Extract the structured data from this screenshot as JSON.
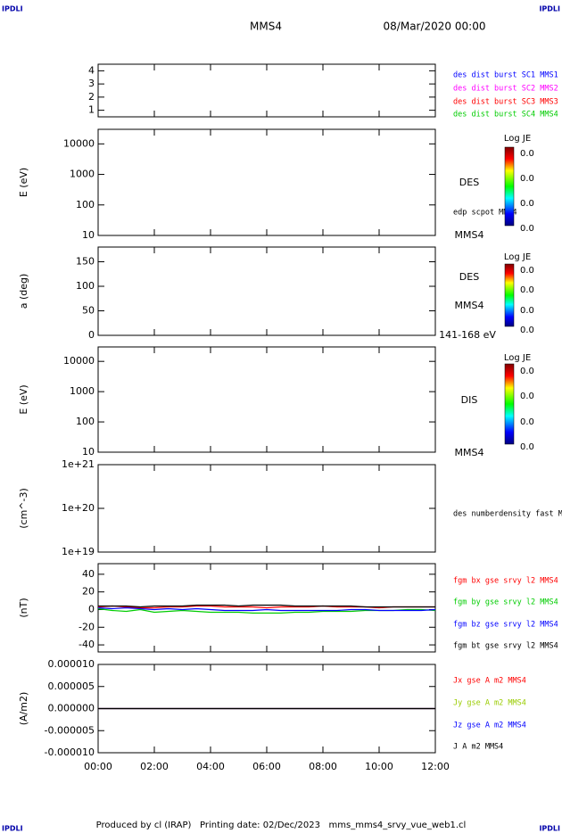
{
  "header": {
    "left_logo": "IPDLI",
    "right_logo": "IPDLI",
    "spacecraft": "MMS4",
    "date": "08/Mar/2020 00:00"
  },
  "footer": {
    "left_logo": "IPDLI",
    "text": "Produced by cl (IRAP)   Printing date: 02/Dec/2023   mms_mms4_srvy_vue_web1.cl",
    "right_logo": "IPDLI"
  },
  "chart_data": [
    {
      "type": "line",
      "ylim": [
        0.5,
        4.5
      ],
      "yticks": [
        1,
        2,
        3,
        4
      ],
      "series": [
        {
          "name": "des dist burst SC1 MMS1",
          "color": "#0000ff"
        },
        {
          "name": "des dist burst SC2 MMS2",
          "color": "#ff00ff"
        },
        {
          "name": "des dist burst SC3 MMS3",
          "color": "#ff0000"
        },
        {
          "name": "des dist burst SC4 MMS4",
          "color": "#00cc00"
        }
      ]
    },
    {
      "type": "spectrogram",
      "y_label": "E (eV)",
      "log_scale": true,
      "ylim": [
        10,
        30000
      ],
      "yticks": [
        10,
        100,
        1000,
        10000
      ],
      "annotations": [
        "DES",
        "edp scpot MMS4",
        "MMS4"
      ],
      "colorbar": {
        "label": "Log JE",
        "tick_labels": [
          "0.0",
          "0.0",
          "0.0",
          "0.0"
        ]
      }
    },
    {
      "type": "spectrogram",
      "y_label": "a (deg)",
      "ylim": [
        0,
        180
      ],
      "yticks": [
        0,
        50,
        100,
        150
      ],
      "annotations": [
        "DES",
        "MMS4",
        "141-168 eV"
      ],
      "colorbar": {
        "label": "Log JE",
        "tick_labels": [
          "0.0",
          "0.0",
          "0.0",
          "0.0"
        ]
      }
    },
    {
      "type": "spectrogram",
      "y_label": "E (eV)",
      "log_scale": true,
      "ylim": [
        10,
        30000
      ],
      "yticks": [
        10,
        100,
        1000,
        10000
      ],
      "annotations": [
        "DIS",
        "MMS4"
      ],
      "colorbar": {
        "label": "Log JE",
        "tick_labels": [
          "0.0",
          "0.0",
          "0.0",
          "0.0"
        ]
      }
    },
    {
      "type": "line",
      "y_label": "(cm^-3)",
      "log_scale": true,
      "ylim": [
        1e+19,
        1e+21
      ],
      "yticks": [
        {
          "value": 1e+19,
          "label": "1e+19"
        },
        {
          "value": 1e+20,
          "label": "1e+20"
        },
        {
          "value": 1e+21,
          "label": "1e+21"
        }
      ],
      "series": [
        {
          "name": "des numberdensity fast M",
          "color": "#000000"
        }
      ]
    },
    {
      "type": "line",
      "y_label": "(nT)",
      "ylim": [
        -48,
        52
      ],
      "yticks": [
        -40,
        -20,
        0,
        20,
        40
      ],
      "x": [
        0,
        0.5,
        1,
        1.5,
        2,
        2.5,
        3,
        3.5,
        4,
        4.5,
        5,
        5.5,
        6,
        6.5,
        7,
        7.5,
        8,
        8.5,
        9,
        9.5,
        10,
        10.5,
        11,
        11.5,
        12
      ],
      "series": [
        {
          "name": "fgm bx gse srvy l2 MMS4",
          "color": "#ff0000",
          "values": [
            3,
            4,
            3,
            2,
            2,
            3,
            3,
            4,
            4,
            3,
            3,
            3,
            2,
            3,
            3,
            3,
            4,
            3,
            3,
            3,
            2,
            3,
            3,
            3,
            3
          ]
        },
        {
          "name": "fgm by gse srvy l2 MMS4",
          "color": "#00cc00",
          "values": [
            1,
            -1,
            -2,
            0,
            -3,
            -2,
            -1,
            -2,
            -3,
            -3,
            -3,
            -4,
            -4,
            -4,
            -3,
            -3,
            -2,
            -2,
            -2,
            -1,
            -1,
            -1,
            0,
            0,
            -1
          ]
        },
        {
          "name": "fgm bz gse srvy l2 MMS4",
          "color": "#0000ff",
          "values": [
            2,
            1,
            2,
            1,
            0,
            1,
            0,
            1,
            0,
            -1,
            -1,
            -1,
            0,
            -1,
            -1,
            -1,
            -1,
            -1,
            0,
            0,
            -1,
            -1,
            -1,
            -1,
            0
          ]
        },
        {
          "name": "fgm bt gse srvy l2 MMS4",
          "color": "#000000",
          "values": [
            4,
            4,
            4,
            3,
            4,
            4,
            4,
            5,
            5,
            5,
            4,
            5,
            5,
            5,
            4,
            4,
            4,
            4,
            4,
            3,
            3,
            3,
            3,
            3,
            3
          ]
        }
      ]
    },
    {
      "type": "line",
      "y_label": "(A/m2)",
      "ylim": [
        -1e-05,
        1e-05
      ],
      "yticks": [
        {
          "value": -1e-05,
          "label": "-0.000010"
        },
        {
          "value": -5e-06,
          "label": "-0.000005"
        },
        {
          "value": 0,
          "label": "0.000000"
        },
        {
          "value": 5e-06,
          "label": "0.000005"
        },
        {
          "value": 1e-05,
          "label": "0.000010"
        }
      ],
      "xlim": [
        0,
        12
      ],
      "xticks": [
        {
          "value": 0,
          "label": "00:00"
        },
        {
          "value": 2,
          "label": "02:00"
        },
        {
          "value": 4,
          "label": "04:00"
        },
        {
          "value": 6,
          "label": "06:00"
        },
        {
          "value": 8,
          "label": "08:00"
        },
        {
          "value": 10,
          "label": "10:00"
        },
        {
          "value": 12,
          "label": "12:00"
        }
      ],
      "x": [
        0,
        0.5,
        1,
        1.5,
        2,
        2.5,
        3,
        3.5,
        4,
        4.5,
        5,
        5.5,
        6,
        6.5,
        7,
        7.5,
        8,
        8.5,
        9,
        9.5,
        10,
        10.5,
        11,
        11.5,
        12
      ],
      "series": [
        {
          "name": "Jx gse A m2 MMS4",
          "color": "#ff0000",
          "values": [
            0,
            0,
            0,
            0,
            0,
            0,
            0,
            0,
            0,
            0,
            0,
            0,
            0,
            0,
            0,
            0,
            0,
            0,
            0,
            0,
            0,
            0,
            0,
            0,
            0
          ]
        },
        {
          "name": "Jy gse A m2 MMS4",
          "color": "#99cc00",
          "values": [
            0,
            0,
            0,
            0,
            0,
            0,
            0,
            0,
            0,
            0,
            0,
            0,
            0,
            0,
            0,
            0,
            0,
            0,
            0,
            0,
            0,
            0,
            0,
            0,
            0
          ]
        },
        {
          "name": "Jz gse A m2 MMS4",
          "color": "#0000ff",
          "values": [
            0,
            0,
            0,
            0,
            0,
            0,
            0,
            0,
            0,
            0,
            0,
            0,
            0,
            0,
            0,
            0,
            0,
            0,
            0,
            0,
            0,
            0,
            0,
            0,
            0
          ]
        },
        {
          "name": "J A m2 MMS4",
          "color": "#000000",
          "values": [
            0,
            0,
            0,
            0,
            0,
            0,
            0,
            0,
            0,
            0,
            0,
            0,
            0,
            0,
            0,
            0,
            0,
            0,
            0,
            0,
            0,
            0,
            0,
            0,
            0
          ]
        }
      ]
    }
  ]
}
